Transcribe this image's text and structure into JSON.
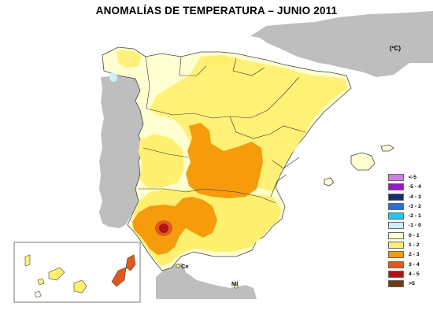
{
  "title": "ANOMALÍAS DE TEMPERATURA – JUNIO 2011",
  "legend": {
    "unit": "(ºC)",
    "entries": [
      {
        "label": "<-5",
        "color": "#d27be8"
      },
      {
        "label": "-5 - 4",
        "color": "#9a17c7"
      },
      {
        "label": "-4 - 3",
        "color": "#1a2f6e"
      },
      {
        "label": "-3 - 2",
        "color": "#2c6de0"
      },
      {
        "label": "-2 - 1",
        "color": "#1ec8f0"
      },
      {
        "label": "-1 - 0",
        "color": "#cceeff"
      },
      {
        "label": "0 - 1",
        "color": "#ffffd2"
      },
      {
        "label": "1 - 2",
        "color": "#fff070"
      },
      {
        "label": "2 - 3",
        "color": "#f59b0c"
      },
      {
        "label": "3 - 4",
        "color": "#e2581a"
      },
      {
        "label": "4 - 5",
        "color": "#b01414"
      },
      {
        "label": ">5",
        "color": "#6b3a10"
      }
    ]
  },
  "places": {
    "ceuta": "Ce",
    "melilla": "Ml"
  },
  "colors": {
    "sea": "#ffffff",
    "foreign_land": "#bebebe",
    "border": "#333333"
  }
}
